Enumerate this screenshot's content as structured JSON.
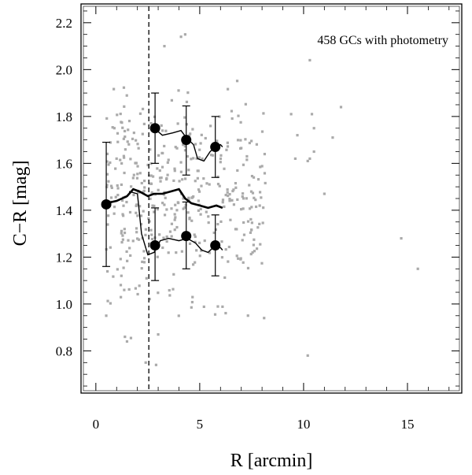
{
  "chart_data": {
    "type": "scatter",
    "xlabel": "R [arcmin]",
    "ylabel": "C−R [mag]",
    "xlim": [
      -0.6,
      17.5
    ],
    "ylim": [
      0.63,
      2.27
    ],
    "x_ticks": [
      "0",
      "5",
      "10",
      "15"
    ],
    "x_tick_values": [
      0,
      5,
      10,
      15
    ],
    "y_ticks": [
      "0.8",
      "1.0",
      "1.2",
      "1.4",
      "1.6",
      "1.8",
      "2.0",
      "2.2"
    ],
    "y_tick_values": [
      0.8,
      1.0,
      1.2,
      1.4,
      1.6,
      1.8,
      2.0,
      2.2
    ],
    "grid": false,
    "annotation": "458  GCs with photometry",
    "vline_x": 2.55,
    "point_color": "#aaaaaa",
    "line_color": "#000000",
    "scatter": {
      "n": 458,
      "x_range": [
        0.4,
        15.5
      ],
      "y_range": [
        0.73,
        2.15
      ],
      "seed": 7,
      "extra_points": [
        [
          4.1,
          2.14
        ],
        [
          4.3,
          2.15
        ],
        [
          3.3,
          2.1
        ],
        [
          10.3,
          2.04
        ],
        [
          10.2,
          0.78
        ],
        [
          2.4,
          0.75
        ],
        [
          2.9,
          0.74
        ],
        [
          3.0,
          0.87
        ],
        [
          1.4,
          0.86
        ],
        [
          1.5,
          0.84
        ],
        [
          0.5,
          0.95
        ],
        [
          14.7,
          1.28
        ],
        [
          15.5,
          1.15
        ],
        [
          11.8,
          1.84
        ],
        [
          11.4,
          1.71
        ],
        [
          9.4,
          1.81
        ],
        [
          10.4,
          1.81
        ],
        [
          10.5,
          1.75
        ],
        [
          10.5,
          1.65
        ],
        [
          10.3,
          1.62
        ],
        [
          11.0,
          1.47
        ],
        [
          9.7,
          1.72
        ],
        [
          9.6,
          1.62
        ],
        [
          10.2,
          1.61
        ],
        [
          8.1,
          0.94
        ]
      ]
    },
    "series": [
      {
        "values": [
          [
            0.5,
            1.43
          ],
          [
            1.0,
            1.44
          ],
          [
            1.5,
            1.46
          ],
          [
            1.8,
            1.49
          ],
          [
            2.1,
            1.48
          ],
          [
            2.5,
            1.46
          ],
          [
            2.8,
            1.47
          ],
          [
            3.2,
            1.47
          ],
          [
            3.6,
            1.48
          ],
          [
            4.0,
            1.49
          ],
          [
            4.3,
            1.45
          ],
          [
            4.6,
            1.43
          ],
          [
            5.0,
            1.42
          ],
          [
            5.4,
            1.41
          ],
          [
            5.8,
            1.42
          ],
          [
            6.1,
            1.41
          ]
        ]
      },
      {
        "values": [
          [
            1.6,
            1.48
          ],
          [
            2.0,
            1.47
          ],
          [
            2.2,
            1.3
          ],
          [
            2.5,
            1.21
          ],
          [
            2.8,
            1.22
          ],
          [
            3.1,
            1.27
          ],
          [
            3.5,
            1.28
          ],
          [
            4.0,
            1.27
          ],
          [
            4.4,
            1.28
          ],
          [
            4.8,
            1.26
          ],
          [
            5.1,
            1.23
          ],
          [
            5.4,
            1.22
          ],
          [
            5.75,
            1.25
          ],
          [
            6.0,
            1.24
          ],
          [
            6.1,
            1.23
          ]
        ]
      },
      {
        "values": [
          [
            2.8,
            1.75
          ],
          [
            3.2,
            1.72
          ],
          [
            3.7,
            1.73
          ],
          [
            4.1,
            1.74
          ],
          [
            4.35,
            1.71
          ],
          [
            4.7,
            1.68
          ],
          [
            4.9,
            1.62
          ],
          [
            5.2,
            1.61
          ],
          [
            5.5,
            1.65
          ],
          [
            5.75,
            1.67
          ],
          [
            6.0,
            1.68
          ],
          [
            6.1,
            1.67
          ]
        ]
      }
    ],
    "binned_points": [
      {
        "x": 0.5,
        "y": 1.425,
        "ylo": 1.16,
        "yhi": 1.69
      },
      {
        "x": 2.85,
        "y": 1.75,
        "ylo": 1.6,
        "yhi": 1.9
      },
      {
        "x": 4.35,
        "y": 1.7,
        "ylo": 1.55,
        "yhi": 1.845
      },
      {
        "x": 5.75,
        "y": 1.67,
        "ylo": 1.54,
        "yhi": 1.8
      },
      {
        "x": 2.85,
        "y": 1.25,
        "ylo": 1.1,
        "yhi": 1.41
      },
      {
        "x": 4.35,
        "y": 1.29,
        "ylo": 1.15,
        "yhi": 1.435
      },
      {
        "x": 5.75,
        "y": 1.25,
        "ylo": 1.12,
        "yhi": 1.38
      }
    ]
  }
}
